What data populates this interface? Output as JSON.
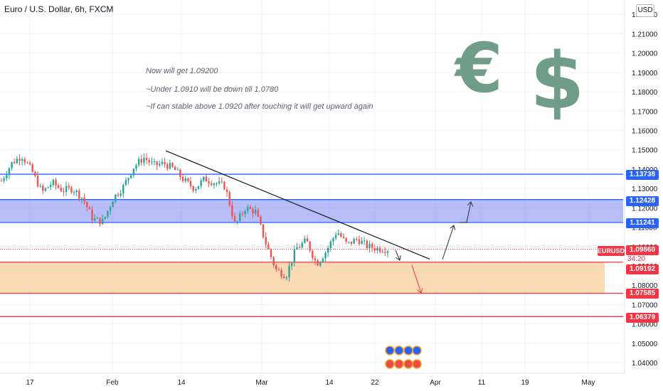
{
  "header": {
    "title": "Euro / U.S. Dollar, 6h, FXCM",
    "currency": "USD"
  },
  "notes": [
    "Now will get 1.09200",
    "~Under 1.0910 will be down till 1.0780",
    "~If can stable above 1.0920 after touching it will get upward again"
  ],
  "symbols": {
    "euro": "€",
    "dollar": "$"
  },
  "colors": {
    "up": "#26a69a",
    "down": "#ef5350",
    "resistance_zone": "#7b87ee",
    "support_zone": "#f6d4a6",
    "blue_line": "#2962ff",
    "red_line": "#f23645"
  },
  "chart_data": {
    "type": "candlestick",
    "instrument": "EURUSD",
    "timeframe": "6h",
    "ylim": [
      1.0345,
      1.2245
    ],
    "y_ticks": [
      "1.22000",
      "1.21000",
      "1.20000",
      "1.19000",
      "1.18000",
      "1.17000",
      "1.16000",
      "1.15000",
      "1.14000",
      "1.13000",
      "1.12000",
      "1.11000",
      "1.10000",
      "1.09000",
      "1.08000",
      "1.07000",
      "1.06000",
      "1.05000",
      "1.04000"
    ],
    "x_ticks": [
      "17",
      "Feb",
      "14",
      "Mar",
      "14",
      "22",
      "Apr",
      "11",
      "19",
      "May"
    ],
    "last_price": {
      "label": "EURUSD",
      "value": "1.09860",
      "countdown": "34:20"
    },
    "horizontal_levels": [
      {
        "label": "1.13738",
        "value": 1.13738,
        "color": "#2962ff"
      },
      {
        "label": "1.12428",
        "value": 1.12428,
        "color": "#2962ff"
      },
      {
        "label": "1.11241",
        "value": 1.11241,
        "color": "#2962ff"
      },
      {
        "label": "1.09192",
        "value": 1.09192,
        "color": "#f23645"
      },
      {
        "label": "1.07585",
        "value": 1.07585,
        "color": "#f23645"
      },
      {
        "label": "1.06379",
        "value": 1.06379,
        "color": "#f23645"
      }
    ],
    "zones": [
      {
        "name": "resistance",
        "from": 1.11241,
        "to": 1.12428
      },
      {
        "name": "support",
        "from": 1.07585,
        "to": 1.09192
      }
    ],
    "trendline": {
      "from": 1.1495,
      "to": 1.0935
    },
    "close_path": [
      1.134,
      1.143,
      1.147,
      1.139,
      1.128,
      1.133,
      1.129,
      1.13,
      1.125,
      1.114,
      1.113,
      1.125,
      1.131,
      1.141,
      1.146,
      1.142,
      1.143,
      1.14,
      1.134,
      1.13,
      1.135,
      1.133,
      1.131,
      1.111,
      1.12,
      1.118,
      1.102,
      1.088,
      1.085,
      1.099,
      1.103,
      1.091,
      1.098,
      1.108,
      1.101,
      1.104,
      1.1,
      1.099,
      1.0986
    ]
  }
}
